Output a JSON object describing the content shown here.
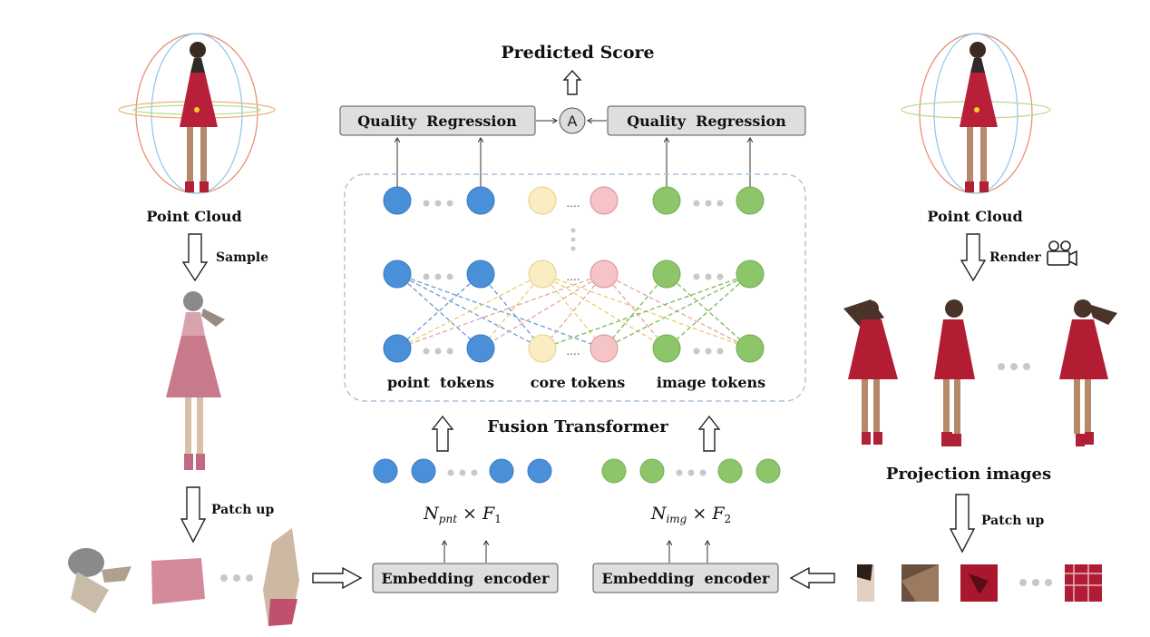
{
  "title": "Predicted Score",
  "aggregator_symbol": "A",
  "left_regression_label": "Quality  Regression",
  "right_regression_label": "Quality  Regression",
  "fusion": {
    "title": "Fusion Transformer",
    "point_tokens_label": "point  tokens",
    "core_tokens_label": "core tokens",
    "image_tokens_label": "image tokens",
    "core_ellipsis": "....",
    "vertical_ellipsis": ":"
  },
  "left_branch": {
    "point_cloud_label": "Point Cloud",
    "sample_label": "Sample",
    "patch_up_label": "Patch up",
    "encoder_label": "Embedding  encoder",
    "dims": {
      "var": "N",
      "sub": "pnt",
      "times": " × ",
      "feat": "F",
      "feat_sub": "1"
    }
  },
  "right_branch": {
    "point_cloud_label": "Point Cloud",
    "render_label": "Render",
    "projection_label": "Projection images",
    "patch_up_label": "Patch up",
    "encoder_label": "Embedding  encoder",
    "dims": {
      "var": "N",
      "sub": "img",
      "times": " × ",
      "feat": "F",
      "feat_sub": "2"
    }
  },
  "colors": {
    "point_token": "#4a90d9",
    "image_token": "#8dc66a",
    "core_token_a": "#fbedc2",
    "core_token_b": "#f6c4c6",
    "box_fill": "#dedede",
    "dashed_border": "#a9c0dc",
    "ellipsis_dots": "#c8c8c8"
  }
}
